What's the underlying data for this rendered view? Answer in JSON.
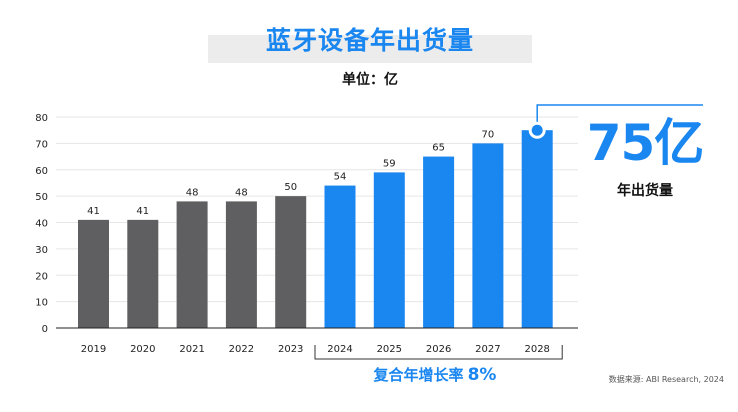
{
  "title": "蓝牙设备年出货量",
  "unit_label": "单位：亿",
  "callout": {
    "value": "75亿",
    "label": "年出货量"
  },
  "cagr": {
    "label": "复合年增长率",
    "value": "8%"
  },
  "source": "数据来源: ABI Research, 2024",
  "colors": {
    "accent": "#1a86f0",
    "historical": "#5f5f61",
    "grid": "#e6e6e6"
  },
  "chart_data": {
    "type": "bar",
    "categories": [
      "2019",
      "2020",
      "2021",
      "2022",
      "2023",
      "2024",
      "2025",
      "2026",
      "2027",
      "2028"
    ],
    "values": [
      41,
      41,
      48,
      48,
      50,
      54,
      59,
      65,
      70,
      75
    ],
    "data_labels": [
      "41",
      "41",
      "48",
      "48",
      "50",
      "54",
      "59",
      "65",
      "70",
      ""
    ],
    "bar_colors": [
      "#5f5f61",
      "#5f5f61",
      "#5f5f61",
      "#5f5f61",
      "#5f5f61",
      "#1a86f0",
      "#1a86f0",
      "#1a86f0",
      "#1a86f0",
      "#1a86f0"
    ],
    "ylim": [
      0,
      80
    ],
    "yticks": [
      0,
      10,
      20,
      30,
      40,
      50,
      60,
      70,
      80
    ],
    "grid": true,
    "bracket_range": [
      "2024",
      "2028"
    ]
  }
}
